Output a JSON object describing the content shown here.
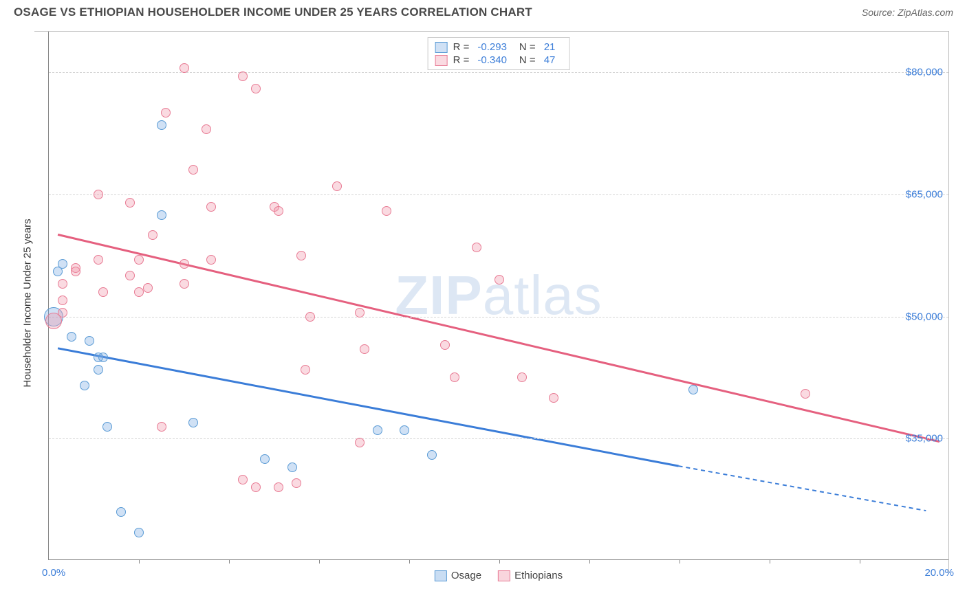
{
  "title": "OSAGE VS ETHIOPIAN HOUSEHOLDER INCOME UNDER 25 YEARS CORRELATION CHART",
  "source": "Source: ZipAtlas.com",
  "watermark_bold": "ZIP",
  "watermark_rest": "atlas",
  "chart": {
    "type": "scatter",
    "background_color": "#ffffff",
    "grid_color": "#d5d5d5",
    "x_axis": {
      "min": 0.0,
      "max": 20.0,
      "label_left": "0.0%",
      "label_right": "20.0%",
      "tick_step_pct": 10
    },
    "y_axis": {
      "label": "Householder Income Under 25 years",
      "ticks": [
        {
          "value": 35000,
          "label": "$35,000"
        },
        {
          "value": 50000,
          "label": "$50,000"
        },
        {
          "value": 65000,
          "label": "$65,000"
        },
        {
          "value": 80000,
          "label": "$80,000"
        }
      ],
      "min": 20000,
      "max": 85000
    },
    "series": [
      {
        "name": "Osage",
        "fill": "rgba(120,170,225,0.35)",
        "stroke": "#5a9bd5",
        "line_color": "#3b7dd8",
        "R": "-0.293",
        "N": "21",
        "trend": {
          "x1": 0.2,
          "y1": 46000,
          "x2_solid": 14.0,
          "y2_solid": 31500,
          "x2_dashed": 19.5,
          "y2_dashed": 26000
        },
        "points": [
          {
            "x": 0.1,
            "y": 50000,
            "r": 14
          },
          {
            "x": 0.2,
            "y": 55500,
            "r": 7
          },
          {
            "x": 0.3,
            "y": 56500,
            "r": 7
          },
          {
            "x": 2.5,
            "y": 73500,
            "r": 7
          },
          {
            "x": 0.5,
            "y": 47500,
            "r": 7
          },
          {
            "x": 0.9,
            "y": 47000,
            "r": 7
          },
          {
            "x": 1.1,
            "y": 45000,
            "r": 7
          },
          {
            "x": 1.2,
            "y": 45000,
            "r": 7
          },
          {
            "x": 1.1,
            "y": 43500,
            "r": 7
          },
          {
            "x": 0.8,
            "y": 41500,
            "r": 7
          },
          {
            "x": 2.5,
            "y": 62500,
            "r": 7
          },
          {
            "x": 1.3,
            "y": 36500,
            "r": 7
          },
          {
            "x": 3.2,
            "y": 37000,
            "r": 7
          },
          {
            "x": 1.6,
            "y": 26000,
            "r": 7
          },
          {
            "x": 2.0,
            "y": 23500,
            "r": 7
          },
          {
            "x": 4.8,
            "y": 32500,
            "r": 7
          },
          {
            "x": 5.4,
            "y": 31500,
            "r": 7
          },
          {
            "x": 7.3,
            "y": 36000,
            "r": 7
          },
          {
            "x": 7.9,
            "y": 36000,
            "r": 7
          },
          {
            "x": 8.5,
            "y": 33000,
            "r": 7
          },
          {
            "x": 14.3,
            "y": 41000,
            "r": 7
          }
        ]
      },
      {
        "name": "Ethiopians",
        "fill": "rgba(240,150,170,0.35)",
        "stroke": "#e87b94",
        "line_color": "#e5607f",
        "R": "-0.340",
        "N": "47",
        "trend": {
          "x1": 0.2,
          "y1": 60000,
          "x2_solid": 19.8,
          "y2_solid": 34500,
          "x2_dashed": 19.8,
          "y2_dashed": 34500
        },
        "points": [
          {
            "x": 0.1,
            "y": 49500,
            "r": 12
          },
          {
            "x": 0.3,
            "y": 54000,
            "r": 7
          },
          {
            "x": 0.3,
            "y": 52000,
            "r": 7
          },
          {
            "x": 0.3,
            "y": 50500,
            "r": 7
          },
          {
            "x": 0.6,
            "y": 56000,
            "r": 7
          },
          {
            "x": 0.6,
            "y": 55500,
            "r": 7
          },
          {
            "x": 1.1,
            "y": 65000,
            "r": 7
          },
          {
            "x": 1.1,
            "y": 57000,
            "r": 7
          },
          {
            "x": 1.2,
            "y": 53000,
            "r": 7
          },
          {
            "x": 1.8,
            "y": 64000,
            "r": 7
          },
          {
            "x": 1.8,
            "y": 55000,
            "r": 7
          },
          {
            "x": 2.0,
            "y": 53000,
            "r": 7
          },
          {
            "x": 2.0,
            "y": 57000,
            "r": 7
          },
          {
            "x": 2.2,
            "y": 53500,
            "r": 7
          },
          {
            "x": 2.3,
            "y": 60000,
            "r": 7
          },
          {
            "x": 2.6,
            "y": 75000,
            "r": 7
          },
          {
            "x": 3.0,
            "y": 80500,
            "r": 7
          },
          {
            "x": 3.0,
            "y": 56500,
            "r": 7
          },
          {
            "x": 3.0,
            "y": 54000,
            "r": 7
          },
          {
            "x": 3.2,
            "y": 68000,
            "r": 7
          },
          {
            "x": 2.5,
            "y": 36500,
            "r": 7
          },
          {
            "x": 3.5,
            "y": 73000,
            "r": 7
          },
          {
            "x": 3.6,
            "y": 63500,
            "r": 7
          },
          {
            "x": 3.6,
            "y": 57000,
            "r": 7
          },
          {
            "x": 4.3,
            "y": 79500,
            "r": 7
          },
          {
            "x": 4.6,
            "y": 78000,
            "r": 7
          },
          {
            "x": 4.3,
            "y": 30000,
            "r": 7
          },
          {
            "x": 4.6,
            "y": 29000,
            "r": 7
          },
          {
            "x": 5.0,
            "y": 63500,
            "r": 7
          },
          {
            "x": 5.1,
            "y": 29000,
            "r": 7
          },
          {
            "x": 5.5,
            "y": 29500,
            "r": 7
          },
          {
            "x": 5.1,
            "y": 63000,
            "r": 7
          },
          {
            "x": 5.6,
            "y": 57500,
            "r": 7
          },
          {
            "x": 5.8,
            "y": 50000,
            "r": 7
          },
          {
            "x": 5.7,
            "y": 43500,
            "r": 7
          },
          {
            "x": 6.4,
            "y": 66000,
            "r": 7
          },
          {
            "x": 6.9,
            "y": 50500,
            "r": 7
          },
          {
            "x": 7.0,
            "y": 46000,
            "r": 7
          },
          {
            "x": 6.9,
            "y": 34500,
            "r": 7
          },
          {
            "x": 7.5,
            "y": 63000,
            "r": 7
          },
          {
            "x": 8.8,
            "y": 46500,
            "r": 7
          },
          {
            "x": 9.0,
            "y": 42500,
            "r": 7
          },
          {
            "x": 9.5,
            "y": 58500,
            "r": 7
          },
          {
            "x": 10.0,
            "y": 54500,
            "r": 7
          },
          {
            "x": 10.5,
            "y": 42500,
            "r": 7
          },
          {
            "x": 11.2,
            "y": 40000,
            "r": 7
          },
          {
            "x": 16.8,
            "y": 40500,
            "r": 7
          }
        ]
      }
    ],
    "bottom_legend": [
      {
        "label": "Osage",
        "fill": "rgba(120,170,225,0.4)",
        "stroke": "#5a9bd5"
      },
      {
        "label": "Ethiopians",
        "fill": "rgba(240,150,170,0.4)",
        "stroke": "#e87b94"
      }
    ]
  }
}
